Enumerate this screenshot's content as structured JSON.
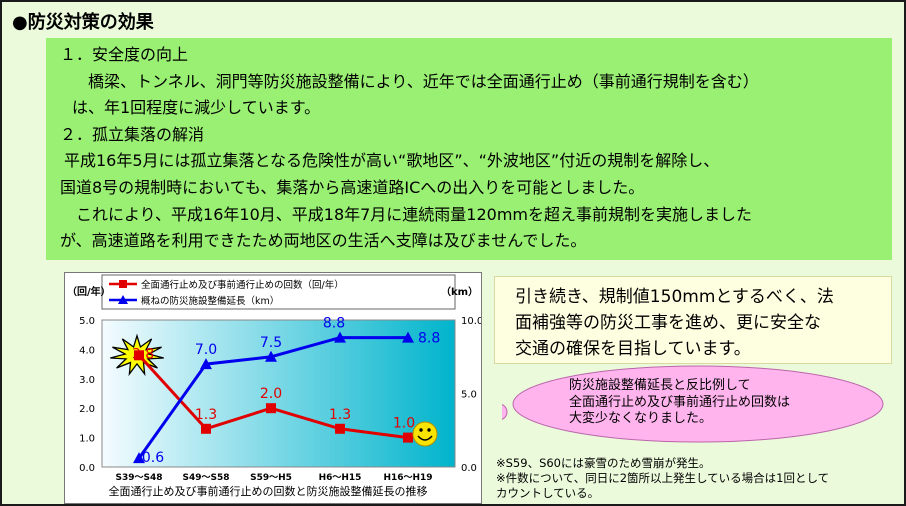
{
  "title": "●防災対策の効果",
  "section1": {
    "heading": "１．安全度の向上",
    "lines": [
      "　橋梁、トンネル、洞門等防災施設整備により、近年では全面通行止め（事前通行規制を含む）",
      "は、年1回程度に減少しています。"
    ]
  },
  "section2": {
    "heading": "２．孤立集落の解消",
    "lines": [
      "平成16年5月には孤立集落となる危険性が高い“歌地区”、“外波地区”付近の規制を解除し、",
      "国道8号の規制時においても、集落から高速道路ICへの出入りを可能としました。",
      "　これにより、平成16年10月、平成18年7月に連続雨量120mmを超え事前規制を実施しました",
      "が、高速道路を利用できたため両地区の生活へ支障は及びませんでした。"
    ]
  },
  "callout": {
    "lines": [
      "引き続き、規制値150mmとするべく、法",
      "面補強等の防災工事を進め、更に安全な",
      "交通の確保を目指しています。"
    ]
  },
  "cloud": {
    "lines": [
      "防災施設整備延長と反比例して",
      "全面通行止め及び事前通行止め回数は",
      "大変少なくなりました。"
    ]
  },
  "notes": [
    "※S59、S60には豪雪のため雪崩が発生。",
    "※件数について、同日に2箇所以上発生している場合は1回として",
    "カウントしている。"
  ],
  "colors": {
    "count_series": "#e00000",
    "length_series": "#0000ee",
    "plot_gradient": [
      "#f4fcff",
      "#00b4cc"
    ]
  },
  "chart_data": {
    "type": "line",
    "title": "全面通行止め及び事前通行止めの回数と防災施設整備延長の推移",
    "categories": [
      "S39～S48",
      "S49～S58",
      "S59～H5",
      "H6～H15",
      "H16～H19"
    ],
    "y_left": {
      "unit": "（回/年）",
      "ylim": [
        0,
        5
      ],
      "ticks": [
        "0.0",
        "1.0",
        "2.0",
        "3.0",
        "4.0",
        "5.0"
      ]
    },
    "y_right": {
      "unit": "（km）",
      "ylim": [
        0,
        10
      ],
      "ticks": [
        "0.0",
        "5.0",
        "10.0"
      ]
    },
    "series": [
      {
        "name": "全面通行止め及び事前通行止めの回数（回/年）",
        "axis": "left",
        "marker": "square",
        "values": [
          3.8,
          1.3,
          2.0,
          1.3,
          1.0
        ],
        "labels": [
          "3.8",
          "1.3",
          "2.0",
          "1.3",
          "1.0"
        ]
      },
      {
        "name": "概ねの防災施設整備延長（km）",
        "axis": "right",
        "marker": "triangle",
        "values": [
          0.6,
          7.0,
          7.5,
          8.8,
          8.8
        ],
        "labels": [
          "0.6",
          "7.0",
          "7.5",
          "8.8",
          "8.8"
        ]
      }
    ],
    "grid": false,
    "legend": "top"
  },
  "icons": [
    "explosion-icon",
    "smiley-icon"
  ]
}
